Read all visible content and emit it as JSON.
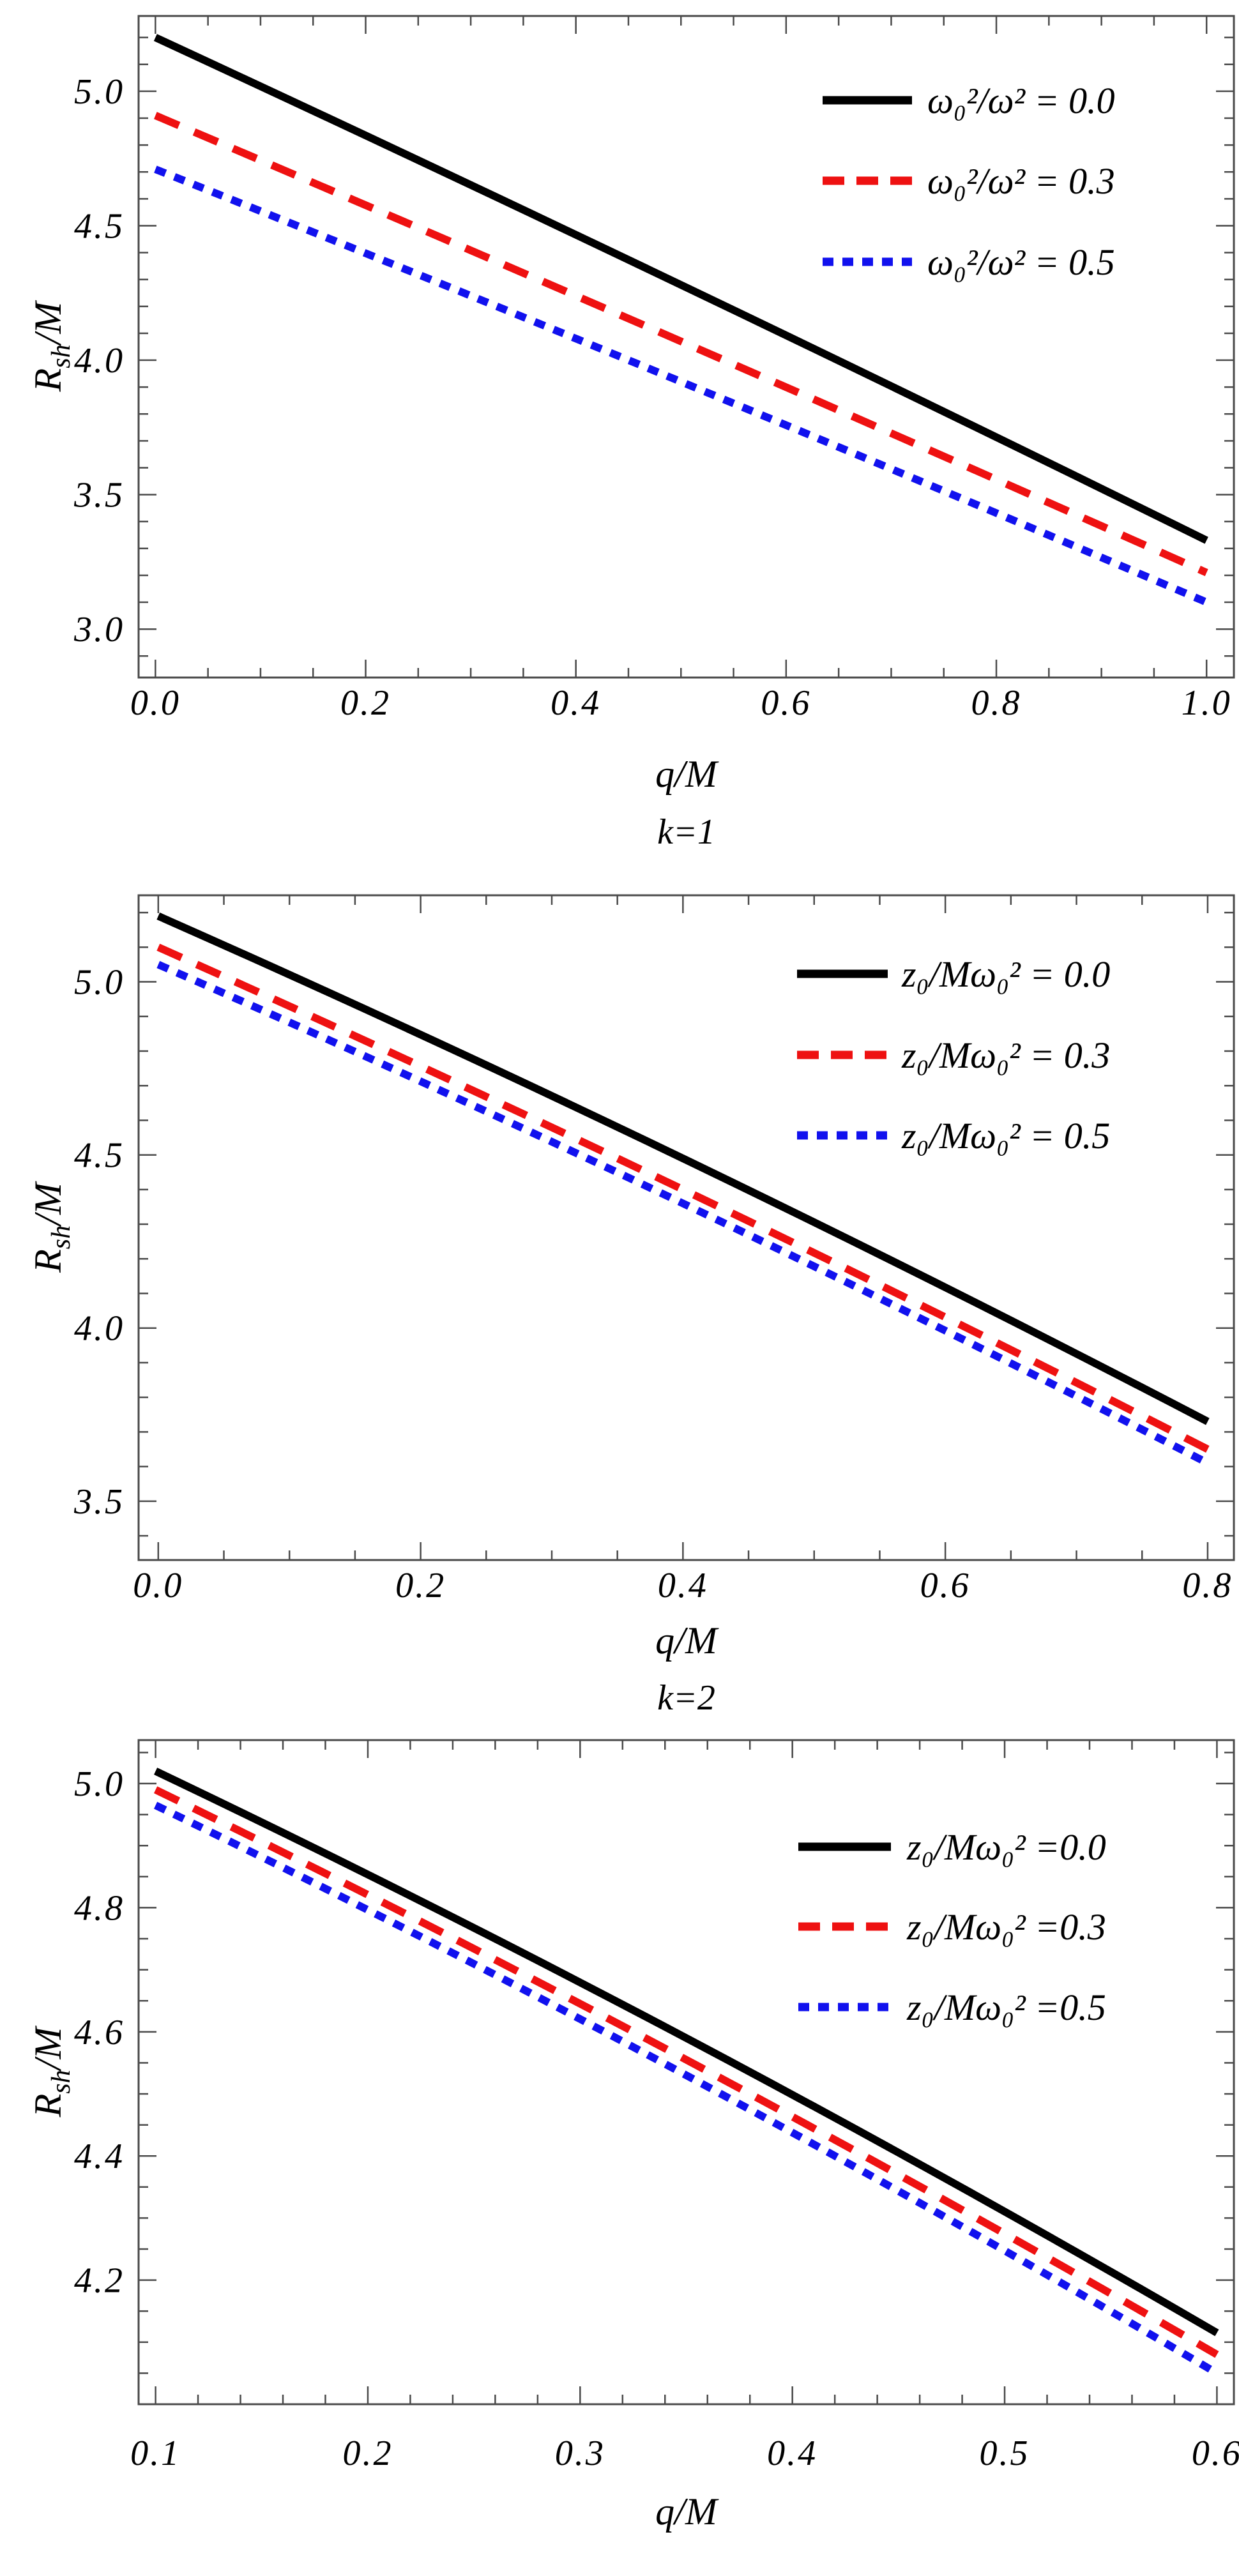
{
  "figure": {
    "background": "#ffffff",
    "frame_color": "#4a4a4a",
    "text_color": "#000000"
  },
  "chart_data": [
    {
      "id": "panel-1",
      "type": "line",
      "title": "",
      "xlabel": "q/M",
      "caption": "k=1",
      "ylabel": {
        "pre": "R",
        "sub": "sh",
        "post": "/M"
      },
      "grid": false,
      "x_axis": {
        "range": [
          0.0,
          1.0
        ],
        "frame": [
          -0.016,
          1.026
        ],
        "major_ticks": [
          0.0,
          0.2,
          0.4,
          0.6,
          0.8,
          1.0
        ],
        "tick_labels": [
          "0.0",
          "0.2",
          "0.4",
          "0.6",
          "0.8",
          "1.0"
        ],
        "minor_step": 0.05
      },
      "y_axis": {
        "range": [
          3.0,
          5.2
        ],
        "frame": [
          2.82,
          5.28
        ],
        "major_ticks": [
          3.0,
          3.5,
          4.0,
          4.5,
          5.0
        ],
        "tick_labels": [
          "3.0",
          "3.5",
          "4.0",
          "4.5",
          "5.0"
        ],
        "minor_step": 0.1
      },
      "legend": {
        "position": "top-right",
        "entries": [
          {
            "label": "ω₀²/ω² = 0.0",
            "color": "#000000",
            "dash": "solid"
          },
          {
            "label": "ω₀²/ω² = 0.3",
            "color": "#ee1111",
            "dash": "dashed"
          },
          {
            "label": "ω₀²/ω² = 0.5",
            "color": "#1111ee",
            "dash": "dotted"
          }
        ]
      },
      "series": [
        {
          "name": "ω₀²/ω² = 0.0",
          "color": "#000000",
          "dash": "solid",
          "points": [
            [
              0.0,
              5.2
            ],
            [
              0.5,
              4.28
            ],
            [
              1.0,
              3.33
            ]
          ]
        },
        {
          "name": "ω₀²/ω² = 0.3",
          "color": "#ee1111",
          "dash": "dashed",
          "points": [
            [
              0.0,
              4.91
            ],
            [
              0.5,
              4.07
            ],
            [
              1.0,
              3.21
            ]
          ]
        },
        {
          "name": "ω₀²/ω² = 0.5",
          "color": "#1111ee",
          "dash": "dotted",
          "points": [
            [
              0.0,
              4.71
            ],
            [
              0.5,
              3.92
            ],
            [
              1.0,
              3.1
            ]
          ]
        }
      ]
    },
    {
      "id": "panel-2",
      "type": "line",
      "title": "",
      "xlabel": "q/M",
      "caption": "k=2",
      "ylabel": {
        "pre": "R",
        "sub": "sh",
        "post": "/M"
      },
      "grid": false,
      "x_axis": {
        "range": [
          0.0,
          0.8
        ],
        "frame": [
          -0.015,
          0.82
        ],
        "major_ticks": [
          0.0,
          0.2,
          0.4,
          0.6,
          0.8
        ],
        "tick_labels": [
          "0.0",
          "0.2",
          "0.4",
          "0.6",
          "0.8"
        ],
        "minor_step": 0.05
      },
      "y_axis": {
        "range": [
          3.5,
          5.2
        ],
        "frame": [
          3.33,
          5.25
        ],
        "major_ticks": [
          3.5,
          4.0,
          4.5,
          5.0
        ],
        "tick_labels": [
          "3.5",
          "4.0",
          "4.5",
          "5.0"
        ],
        "minor_step": 0.1
      },
      "legend": {
        "position": "top-right",
        "entries": [
          {
            "label": "z₀/Mω₀² = 0.0",
            "color": "#000000",
            "dash": "solid"
          },
          {
            "label": "z₀/Mω₀² = 0.3",
            "color": "#ee1111",
            "dash": "dashed"
          },
          {
            "label": "z₀/Mω₀² = 0.5",
            "color": "#1111ee",
            "dash": "dotted"
          }
        ]
      },
      "series": [
        {
          "name": "z₀/Mω₀² = 0.0",
          "color": "#000000",
          "dash": "solid",
          "points": [
            [
              0.0,
              5.19
            ],
            [
              0.4,
              4.49
            ],
            [
              0.8,
              3.73
            ]
          ]
        },
        {
          "name": "z₀/Mω₀² = 0.3",
          "color": "#ee1111",
          "dash": "dashed",
          "points": [
            [
              0.0,
              5.1
            ],
            [
              0.4,
              4.4
            ],
            [
              0.8,
              3.65
            ]
          ]
        },
        {
          "name": "z₀/Mω₀² = 0.5",
          "color": "#1111ee",
          "dash": "dotted",
          "points": [
            [
              0.0,
              5.05
            ],
            [
              0.4,
              4.36
            ],
            [
              0.8,
              3.61
            ]
          ]
        }
      ]
    },
    {
      "id": "panel-3",
      "type": "line",
      "title": "",
      "xlabel": "q/M",
      "caption": "",
      "ylabel": {
        "pre": "R",
        "sub": "sh",
        "post": "/M"
      },
      "grid": false,
      "x_axis": {
        "range": [
          0.1,
          0.6
        ],
        "frame": [
          0.092,
          0.608
        ],
        "major_ticks": [
          0.1,
          0.2,
          0.3,
          0.4,
          0.5,
          0.6
        ],
        "tick_labels": [
          "0.1",
          "0.2",
          "0.3",
          "0.4",
          "0.5",
          "0.6"
        ],
        "minor_step": 0.02
      },
      "y_axis": {
        "range": [
          4.05,
          5.02
        ],
        "frame": [
          4.0,
          5.07
        ],
        "major_ticks": [
          4.2,
          4.4,
          4.6,
          4.8,
          5.0
        ],
        "tick_labels": [
          "4.2",
          "4.4",
          "4.6",
          "4.8",
          "5.0"
        ],
        "minor_step": 0.05
      },
      "legend": {
        "position": "top-right",
        "entries": [
          {
            "label": "z₀/Mω₀² =0.0",
            "color": "#000000",
            "dash": "solid"
          },
          {
            "label": "z₀/Mω₀² =0.3",
            "color": "#ee1111",
            "dash": "dashed"
          },
          {
            "label": "z₀/Mω₀² =0.5",
            "color": "#1111ee",
            "dash": "dotted"
          }
        ]
      },
      "series": [
        {
          "name": "z₀/Mω₀² =0.0",
          "color": "#000000",
          "dash": "solid",
          "points": [
            [
              0.1,
              5.02
            ],
            [
              0.35,
              4.59
            ],
            [
              0.6,
              4.115
            ]
          ]
        },
        {
          "name": "z₀/Mω₀² =0.3",
          "color": "#ee1111",
          "dash": "dashed",
          "points": [
            [
              0.1,
              4.99
            ],
            [
              0.35,
              4.555
            ],
            [
              0.6,
              4.08
            ]
          ]
        },
        {
          "name": "z₀/Mω₀² =0.5",
          "color": "#1111ee",
          "dash": "dotted",
          "points": [
            [
              0.1,
              4.965
            ],
            [
              0.35,
              4.53
            ],
            [
              0.6,
              4.05
            ]
          ]
        }
      ]
    }
  ]
}
